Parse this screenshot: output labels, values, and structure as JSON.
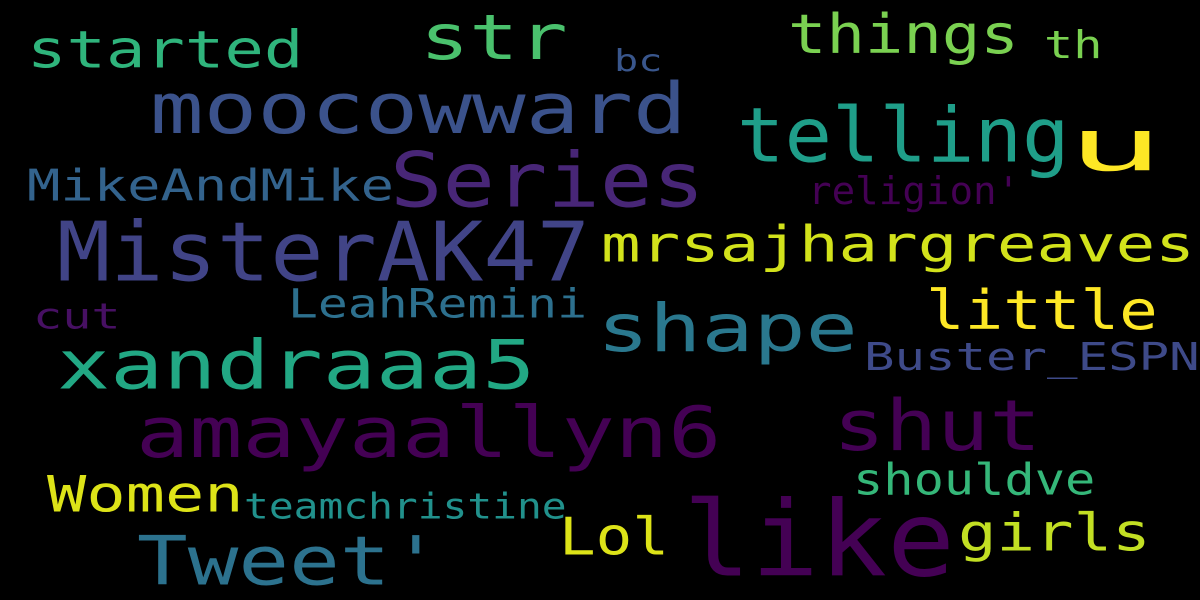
{
  "background_color": "#000000",
  "words": [
    {
      "text": "like",
      "color": "#440154"
    },
    {
      "text": "MisterAK47",
      "color": "#414487"
    },
    {
      "text": "amayaallyn6",
      "color": "#440154"
    },
    {
      "text": "xandraaa5",
      "color": "#22a884"
    },
    {
      "text": "moocowward",
      "color": "#3b528b"
    },
    {
      "text": "telling",
      "color": "#1f9e89"
    },
    {
      "text": "Series",
      "color": "#482677"
    },
    {
      "text": "shape",
      "color": "#2a788e"
    },
    {
      "text": "shut",
      "color": "#440154"
    },
    {
      "text": "Tweet'",
      "color": "#2c728e"
    },
    {
      "text": "str",
      "color": "#4ac16d"
    },
    {
      "text": "mrsajhargreaves",
      "color": "#d2e21b"
    },
    {
      "text": "u",
      "color": "#fde725"
    },
    {
      "text": "little",
      "color": "#fde725"
    },
    {
      "text": "things",
      "color": "#7ad151"
    },
    {
      "text": "started",
      "color": "#2fb47c"
    },
    {
      "text": "Women",
      "color": "#dde318"
    },
    {
      "text": "girls",
      "color": "#c2df23"
    },
    {
      "text": "Lol",
      "color": "#dde318"
    },
    {
      "text": "MikeAndMike",
      "color": "#33638d"
    },
    {
      "text": "LeahRemini",
      "color": "#2d708e"
    },
    {
      "text": "Buster_ESPN",
      "color": "#3e4a89"
    },
    {
      "text": "shouldve",
      "color": "#35b779"
    },
    {
      "text": "teamchristine",
      "color": "#21918c"
    },
    {
      "text": "cut",
      "color": "#471063"
    },
    {
      "text": "th",
      "color": "#7ad151"
    },
    {
      "text": "religion'",
      "color": "#440154"
    },
    {
      "text": "bc",
      "color": "#39568c"
    }
  ]
}
